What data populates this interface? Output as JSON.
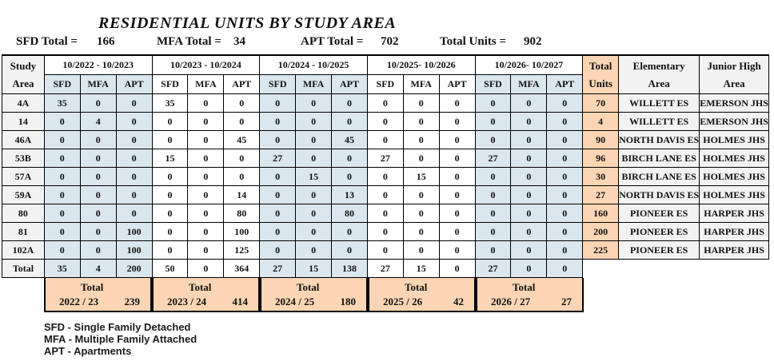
{
  "title": "RESIDENTIAL UNITS BY STUDY AREA",
  "summary": {
    "sfd_label": "SFD Total =",
    "sfd_value": "166",
    "mfa_label": "MFA Total =",
    "mfa_value": "34",
    "apt_label": "APT Total =",
    "apt_value": "702",
    "total_label": "Total Units =",
    "total_value": "902"
  },
  "table": {
    "study_area_header": [
      "Study",
      "Area"
    ],
    "sub_headers": [
      "SFD",
      "MFA",
      "APT"
    ],
    "period_groups": [
      {
        "label": "10/2022 - 10/2023",
        "tint": true
      },
      {
        "label": "10/2023 - 10/2024",
        "tint": false
      },
      {
        "label": "10/2024 - 10/2025",
        "tint": true
      },
      {
        "label": "10/2025- 10/2026",
        "tint": false
      },
      {
        "label": "10/2026- 10/2027",
        "tint": true
      }
    ],
    "total_units_header": [
      "Total",
      "Units"
    ],
    "elementary_header": [
      "Elementary",
      "Area"
    ],
    "junior_high_header": [
      "Junior High",
      "Area"
    ],
    "rows": [
      {
        "area": "4A",
        "values": [
          35,
          0,
          0,
          35,
          0,
          0,
          0,
          0,
          0,
          0,
          0,
          0,
          0,
          0,
          0
        ],
        "total_units": 70,
        "elementary": "WILLETT ES",
        "junior_high": "EMERSON JHS"
      },
      {
        "area": "14",
        "values": [
          0,
          4,
          0,
          0,
          0,
          0,
          0,
          0,
          0,
          0,
          0,
          0,
          0,
          0,
          0
        ],
        "total_units": 4,
        "elementary": "WILLETT ES",
        "junior_high": "EMERSON JHS"
      },
      {
        "area": "46A",
        "values": [
          0,
          0,
          0,
          0,
          0,
          45,
          0,
          0,
          45,
          0,
          0,
          0,
          0,
          0,
          0
        ],
        "total_units": 90,
        "elementary": "NORTH DAVIS ES",
        "junior_high": "HOLMES JHS"
      },
      {
        "area": "53B",
        "values": [
          0,
          0,
          0,
          15,
          0,
          0,
          27,
          0,
          0,
          27,
          0,
          0,
          27,
          0,
          0
        ],
        "total_units": 96,
        "elementary": "BIRCH LANE ES",
        "junior_high": "HOLMES JHS"
      },
      {
        "area": "57A",
        "values": [
          0,
          0,
          0,
          0,
          0,
          0,
          0,
          15,
          0,
          0,
          15,
          0,
          0,
          0,
          0
        ],
        "total_units": 30,
        "elementary": "BIRCH LANE ES",
        "junior_high": "HOLMES JHS"
      },
      {
        "area": "59A",
        "values": [
          0,
          0,
          0,
          0,
          0,
          14,
          0,
          0,
          13,
          0,
          0,
          0,
          0,
          0,
          0
        ],
        "total_units": 27,
        "elementary": "NORTH DAVIS ES",
        "junior_high": "HOLMES JHS"
      },
      {
        "area": "80",
        "values": [
          0,
          0,
          0,
          0,
          0,
          80,
          0,
          0,
          80,
          0,
          0,
          0,
          0,
          0,
          0
        ],
        "total_units": 160,
        "elementary": "PIONEER ES",
        "junior_high": "HARPER JHS"
      },
      {
        "area": "81",
        "values": [
          0,
          0,
          100,
          0,
          0,
          100,
          0,
          0,
          0,
          0,
          0,
          0,
          0,
          0,
          0
        ],
        "total_units": 200,
        "elementary": "PIONEER ES",
        "junior_high": "HARPER JHS"
      },
      {
        "area": "102A",
        "values": [
          0,
          0,
          100,
          0,
          0,
          125,
          0,
          0,
          0,
          0,
          0,
          0,
          0,
          0,
          0
        ],
        "total_units": 225,
        "elementary": "PIONEER ES",
        "junior_high": "HARPER JHS"
      }
    ],
    "total_row": {
      "label": "Total",
      "values": [
        35,
        4,
        200,
        50,
        0,
        364,
        27,
        15,
        138,
        27,
        15,
        0,
        27,
        0,
        0
      ]
    }
  },
  "year_totals": [
    {
      "label": "Total",
      "year": "2022 / 23",
      "value": "239"
    },
    {
      "label": "Total",
      "year": "2023 / 24",
      "value": "414"
    },
    {
      "label": "Total",
      "year": "2024 / 25",
      "value": "180"
    },
    {
      "label": "Total",
      "year": "2025 / 26",
      "value": "42"
    },
    {
      "label": "Total",
      "year": "2026 / 27",
      "value": "27"
    }
  ],
  "legend": [
    "SFD - Single Family Detached",
    "MFA - Multiple Family Attached",
    "APT - Apartments"
  ],
  "colors": {
    "tint_blue": "#DAE7EF",
    "tint_orange": "#FCD5B4",
    "tint_gray": "#F2F2F2",
    "grid_border": "#000000"
  }
}
